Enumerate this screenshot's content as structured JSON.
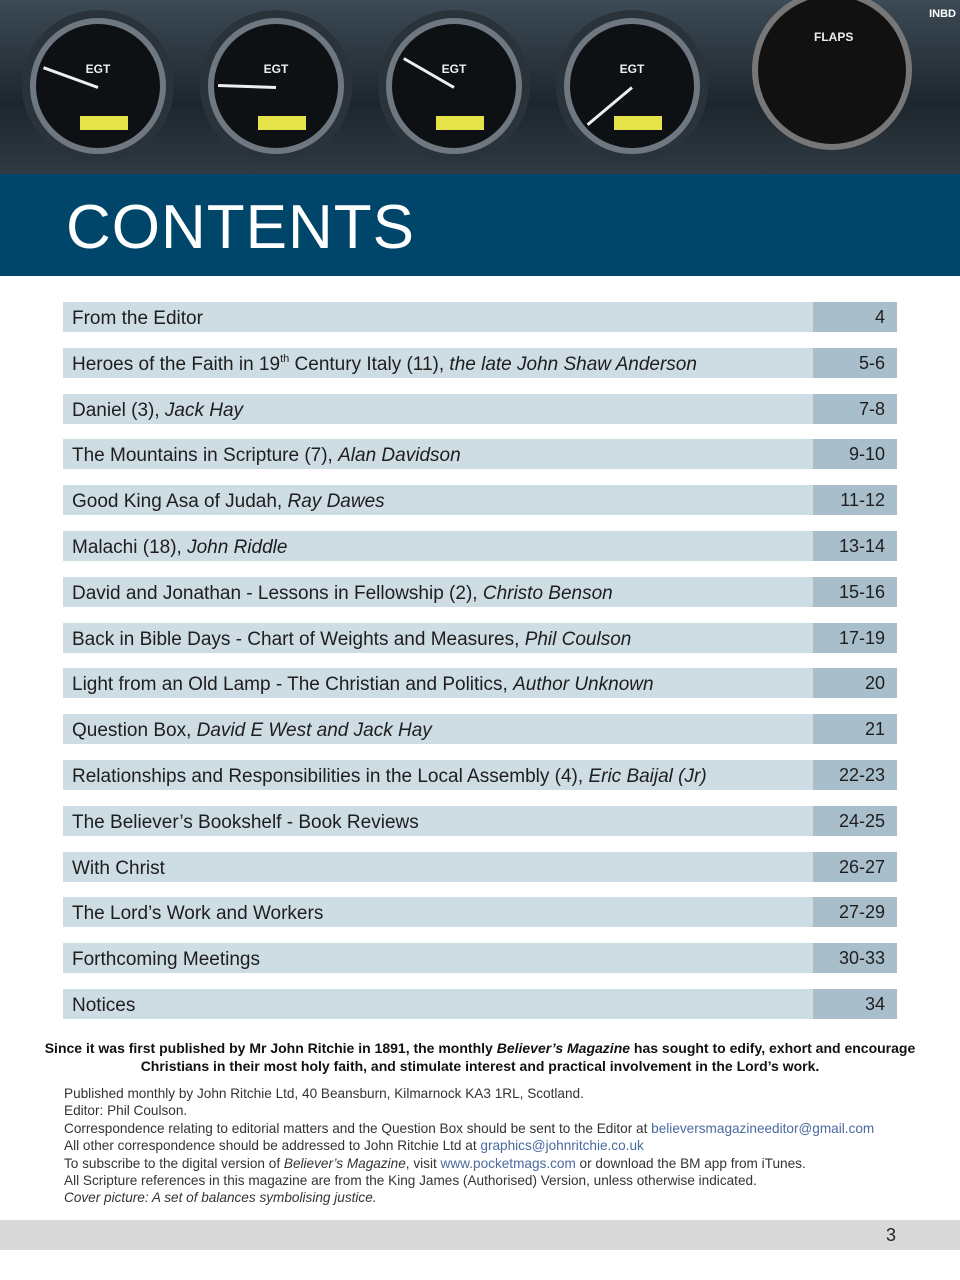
{
  "header": {
    "corner_label": "INBD",
    "gauge_label": "EGT",
    "flaps_label": "FLAPS",
    "title": "CONTENTS",
    "colors": {
      "band": "#00466a",
      "row": "#cedce4",
      "page_box": "#a9becb",
      "link": "#4a6aa0"
    }
  },
  "toc": [
    {
      "title": "From the Editor",
      "author": "",
      "pages": "4"
    },
    {
      "title": "Heroes of the Faith in 19",
      "sup": "th",
      "title_cont": " Century Italy (11), ",
      "author": "the late John Shaw Anderson",
      "pages": "5-6"
    },
    {
      "title": "Daniel (3), ",
      "author": "Jack Hay",
      "pages": "7-8"
    },
    {
      "title": "The Mountains in Scripture (7),  ",
      "author": "Alan Davidson",
      "pages": "9-10"
    },
    {
      "title": "Good King Asa of Judah, ",
      "author": "Ray Dawes",
      "pages": "11-12"
    },
    {
      "title": "Malachi (18), ",
      "author": "John Riddle",
      "pages": "13-14"
    },
    {
      "title": "David and Jonathan - Lessons in Fellowship (2), ",
      "author": "Christo Benson",
      "pages": "15-16"
    },
    {
      "title": "Back in Bible Days - Chart of Weights and Measures, ",
      "author": "Phil Coulson",
      "pages": "17-19"
    },
    {
      "title": "Light from an Old Lamp - The Christian and Politics, ",
      "author": "Author Unknown",
      "pages": "20"
    },
    {
      "title": "Question Box, ",
      "author": "David E West and Jack Hay",
      "pages": "21"
    },
    {
      "title": "Relationships and Responsibilities in the Local Assembly (4), ",
      "author": "Eric Baijal (Jr)",
      "pages": "22-23"
    },
    {
      "title": "The Believer’s Bookshelf - Book Reviews",
      "author": "",
      "pages": "24-25"
    },
    {
      "title": "With Christ",
      "author": "",
      "pages": "26-27"
    },
    {
      "title": "The Lord’s Work and Workers",
      "author": "",
      "pages": "27-29"
    },
    {
      "title": "Forthcoming Meetings",
      "author": "",
      "pages": "30-33"
    },
    {
      "title": "Notices",
      "author": "",
      "pages": "34"
    }
  ],
  "mission": [
    {
      "text": "Since it was first published by Mr John Ritchie in 1891, the monthly "
    },
    {
      "text": "Believer’s Magazine",
      "style": "italic"
    },
    {
      "text": " has sought to edify, exhort and encourage Christians in their most holy faith, and stimulate interest and practical involvement in the Lord’s work."
    }
  ],
  "info": [
    [
      {
        "text": "Published monthly by John Ritchie Ltd, 40 Beansburn, Kilmarnock KA3 1RL, Scotland."
      }
    ],
    [
      {
        "text": "Editor: Phil Coulson."
      }
    ],
    [
      {
        "text": "Correspondence relating to editorial matters and the Question Box should be sent to the Editor at "
      },
      {
        "text": "believersmagazineeditor@gmail.com",
        "style": "link"
      }
    ],
    [
      {
        "text": "All other correspondence should be addressed to John Ritchie Ltd at "
      },
      {
        "text": "graphics@johnritchie.co.uk",
        "style": "link"
      }
    ],
    [
      {
        "text": "To subscribe to the digital version of "
      },
      {
        "text": "Believer’s Magazine",
        "style": "italic"
      },
      {
        "text": ", visit "
      },
      {
        "text": "www.pocketmags.com",
        "style": "link"
      },
      {
        "text": " or download the BM app from iTunes."
      }
    ],
    [
      {
        "text": "All Scripture references in this magazine are from the King James (Authorised) Version, unless otherwise indicated."
      }
    ],
    [
      {
        "text": "Cover picture: A set of balances symbolising justice.",
        "style": "italic"
      }
    ]
  ],
  "footer": {
    "page_number": "3"
  }
}
